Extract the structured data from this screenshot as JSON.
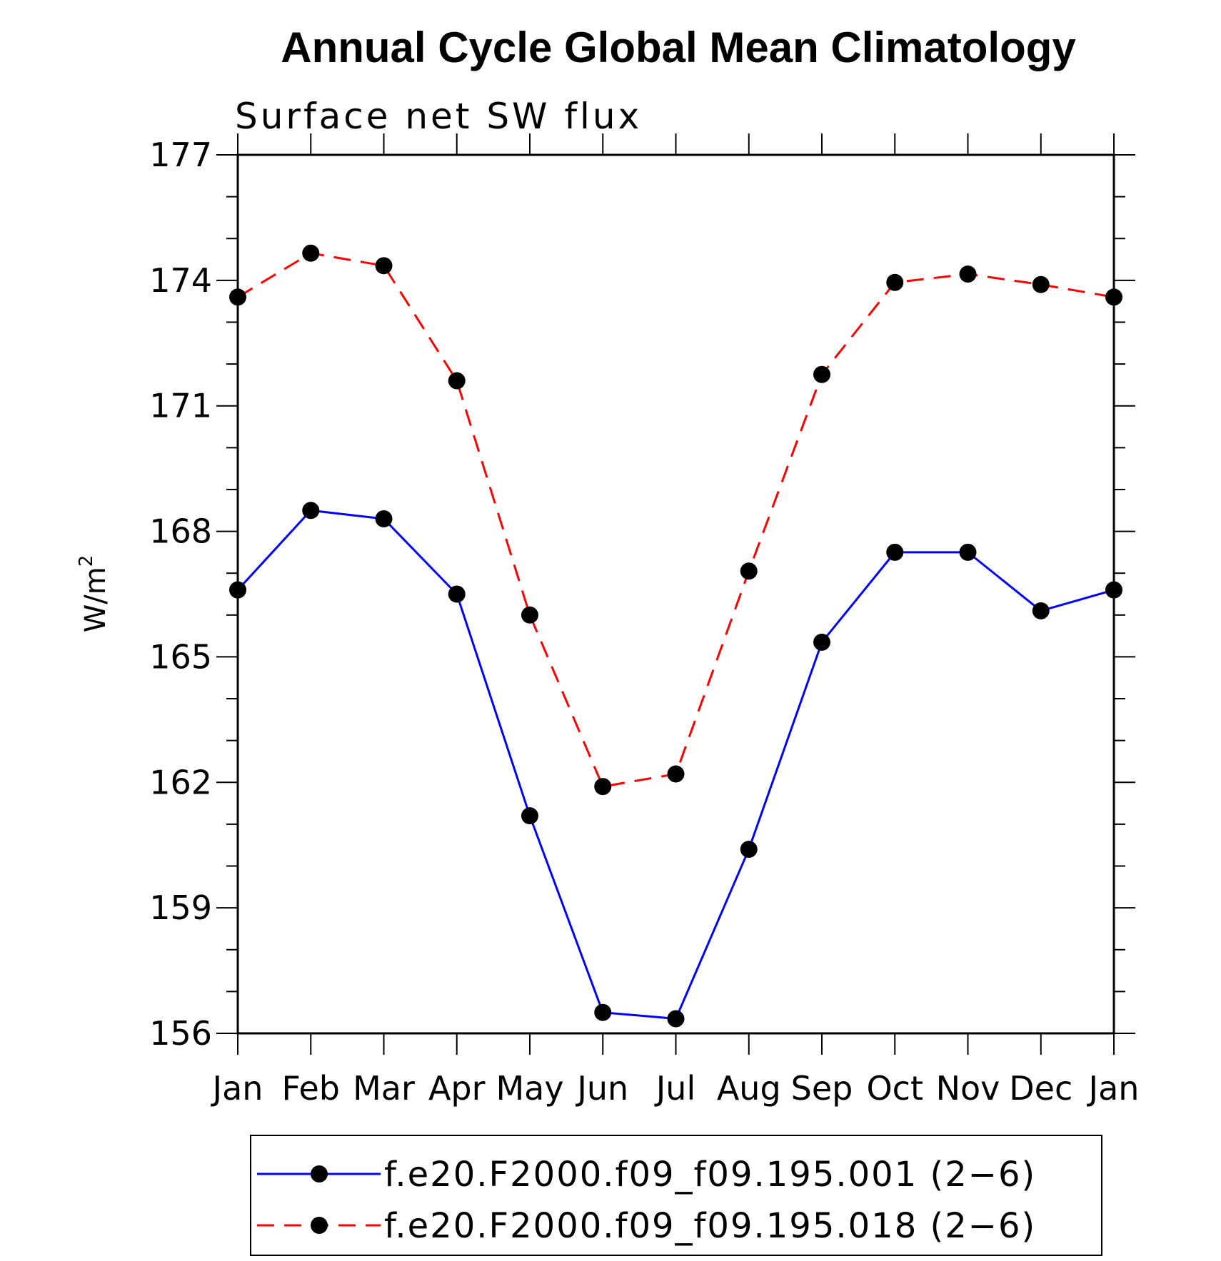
{
  "chart_data": {
    "type": "line",
    "title": "Annual Cycle Global Mean Climatology",
    "subtitle": "Surface net SW flux",
    "ylabel": "W/m",
    "ylabel_superscript": "2",
    "xlabel": "",
    "categories": [
      "Jan",
      "Feb",
      "Mar",
      "Apr",
      "May",
      "Jun",
      "Jul",
      "Aug",
      "Sep",
      "Oct",
      "Nov",
      "Dec",
      "Jan"
    ],
    "ylim": [
      156,
      177
    ],
    "yticks": [
      156,
      159,
      162,
      165,
      168,
      171,
      174,
      177
    ],
    "grid": false,
    "legend_position": "bottom",
    "series": [
      {
        "name": "f.e20.F2000.f09_f09.195.001 (2−6)",
        "color": "#0000ff",
        "dash": "solid",
        "marker": "filled-circle",
        "values": [
          166.6,
          168.5,
          168.3,
          166.5,
          161.2,
          156.5,
          156.35,
          160.4,
          165.35,
          167.5,
          167.5,
          166.1,
          166.6
        ]
      },
      {
        "name": "f.e20.F2000.f09_f09.195.018 (2−6)",
        "color": "#ff0000",
        "dash": "dashed",
        "marker": "filled-circle",
        "values": [
          173.6,
          174.65,
          174.35,
          171.6,
          166.0,
          161.9,
          162.2,
          167.05,
          171.75,
          173.95,
          174.15,
          173.9,
          173.6
        ]
      }
    ]
  }
}
